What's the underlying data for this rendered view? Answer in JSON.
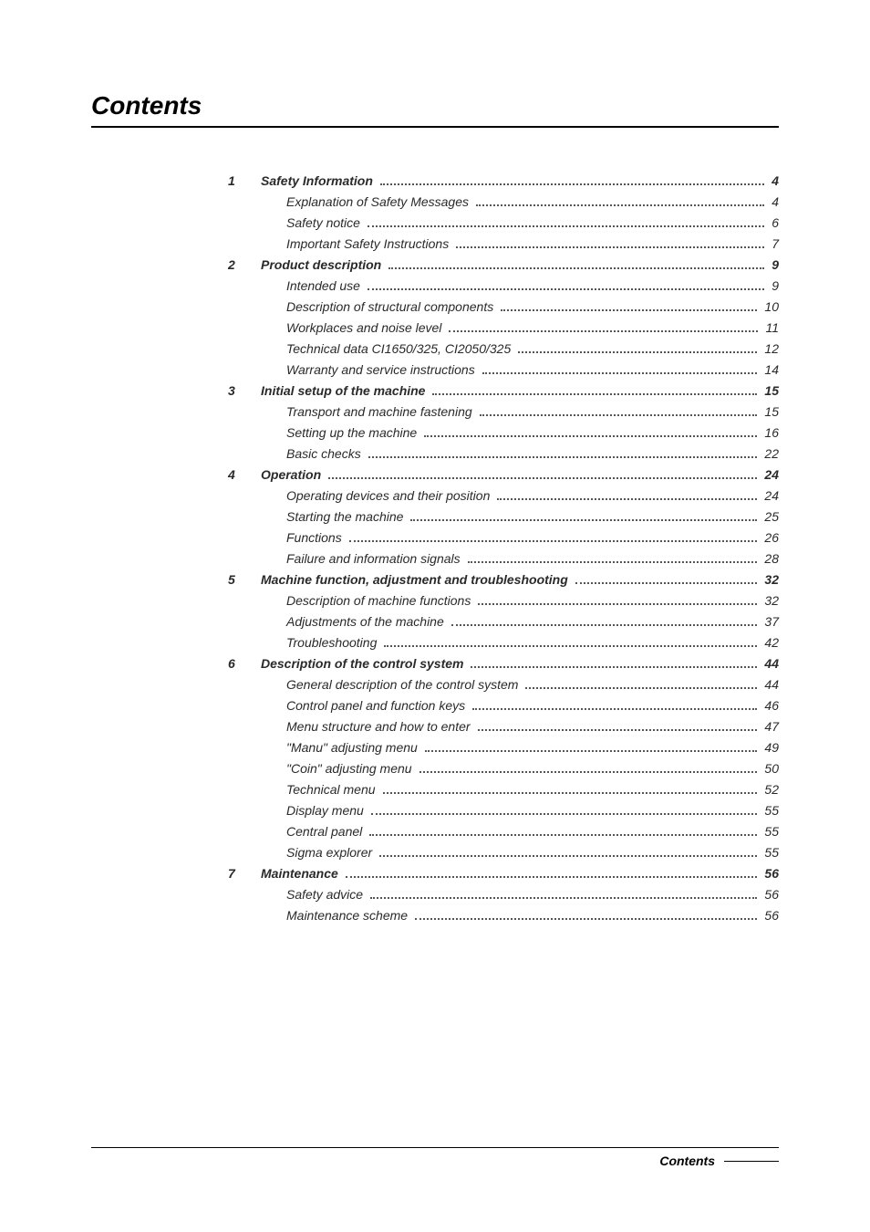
{
  "title": "Contents",
  "footer_label": "Contents",
  "entries": [
    {
      "num": "1",
      "label": "Safety Information",
      "page": "4",
      "bold": true,
      "sub": false
    },
    {
      "num": "",
      "label": "Explanation of Safety Messages",
      "page": "4",
      "bold": false,
      "sub": true
    },
    {
      "num": "",
      "label": "Safety notice",
      "page": "6",
      "bold": false,
      "sub": true
    },
    {
      "num": "",
      "label": "Important Safety Instructions",
      "page": "7",
      "bold": false,
      "sub": true
    },
    {
      "num": "2",
      "label": "Product description",
      "page": "9",
      "bold": true,
      "sub": false
    },
    {
      "num": "",
      "label": "Intended use",
      "page": "9",
      "bold": false,
      "sub": true
    },
    {
      "num": "",
      "label": "Description of structural components",
      "page": "10",
      "bold": false,
      "sub": true
    },
    {
      "num": "",
      "label": "Workplaces and noise level",
      "page": "11",
      "bold": false,
      "sub": true
    },
    {
      "num": "",
      "label": "Technical data CI1650/325, CI2050/325",
      "page": "12",
      "bold": false,
      "sub": true
    },
    {
      "num": "",
      "label": "Warranty and service instructions",
      "page": "14",
      "bold": false,
      "sub": true
    },
    {
      "num": "3",
      "label": "Initial setup of the machine",
      "page": "15",
      "bold": true,
      "sub": false
    },
    {
      "num": "",
      "label": "Transport and machine fastening",
      "page": "15",
      "bold": false,
      "sub": true
    },
    {
      "num": "",
      "label": "Setting up the machine",
      "page": "16",
      "bold": false,
      "sub": true
    },
    {
      "num": "",
      "label": "Basic checks",
      "page": "22",
      "bold": false,
      "sub": true
    },
    {
      "num": "4",
      "label": "Operation",
      "page": "24",
      "bold": true,
      "sub": false
    },
    {
      "num": "",
      "label": "Operating devices and their position",
      "page": "24",
      "bold": false,
      "sub": true
    },
    {
      "num": "",
      "label": "Starting the machine",
      "page": "25",
      "bold": false,
      "sub": true
    },
    {
      "num": "",
      "label": "Functions",
      "page": "26",
      "bold": false,
      "sub": true
    },
    {
      "num": "",
      "label": "Failure and information signals",
      "page": "28",
      "bold": false,
      "sub": true
    },
    {
      "num": "5",
      "label": "Machine function, adjustment and troubleshooting",
      "page": "32",
      "bold": true,
      "sub": false
    },
    {
      "num": "",
      "label": "Description of machine functions",
      "page": "32",
      "bold": false,
      "sub": true
    },
    {
      "num": "",
      "label": "Adjustments of the machine",
      "page": "37",
      "bold": false,
      "sub": true
    },
    {
      "num": "",
      "label": "Troubleshooting",
      "page": "42",
      "bold": false,
      "sub": true
    },
    {
      "num": "6",
      "label": "Description of the control system",
      "page": "44",
      "bold": true,
      "sub": false
    },
    {
      "num": "",
      "label": "General description of the control system",
      "page": "44",
      "bold": false,
      "sub": true
    },
    {
      "num": "",
      "label": "Control panel and function keys",
      "page": "46",
      "bold": false,
      "sub": true
    },
    {
      "num": "",
      "label": "Menu structure and how to enter",
      "page": "47",
      "bold": false,
      "sub": true
    },
    {
      "num": "",
      "label": "\"Manu\" adjusting menu",
      "page": "49",
      "bold": false,
      "sub": true
    },
    {
      "num": "",
      "label": "\"Coin\" adjusting menu",
      "page": "50",
      "bold": false,
      "sub": true
    },
    {
      "num": "",
      "label": "Technical menu",
      "page": "52",
      "bold": false,
      "sub": true
    },
    {
      "num": "",
      "label": "Display menu",
      "page": "55",
      "bold": false,
      "sub": true
    },
    {
      "num": "",
      "label": "Central panel",
      "page": "55",
      "bold": false,
      "sub": true
    },
    {
      "num": "",
      "label": "Sigma explorer",
      "page": "55",
      "bold": false,
      "sub": true
    },
    {
      "num": "7",
      "label": "Maintenance",
      "page": "56",
      "bold": true,
      "sub": false
    },
    {
      "num": "",
      "label": "Safety advice",
      "page": "56",
      "bold": false,
      "sub": true
    },
    {
      "num": "",
      "label": "Maintenance scheme",
      "page": "56",
      "bold": false,
      "sub": true
    }
  ]
}
